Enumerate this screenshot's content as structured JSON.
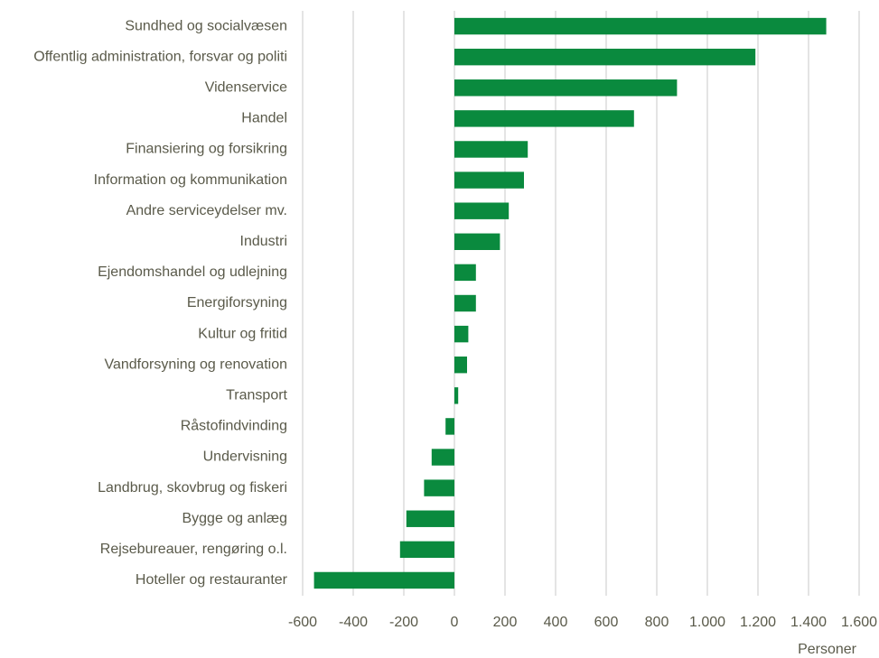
{
  "chart_data": {
    "type": "barh",
    "categories": [
      "Sundhed og socialvæsen",
      "Offentlig administration, forsvar og politi",
      "Videnservice",
      "Handel",
      "Finansiering og forsikring",
      "Information og kommunikation",
      "Andre serviceydelser mv.",
      "Industri",
      "Ejendomshandel og udlejning",
      "Energiforsyning",
      "Kultur og fritid",
      "Vandforsyning og renovation",
      "Transport",
      "Råstofindvinding",
      "Undervisning",
      "Landbrug, skovbrug og fiskeri",
      "Bygge og anlæg",
      "Rejsebureauer, rengøring o.l.",
      "Hoteller og restauranter"
    ],
    "values": [
      1470,
      1190,
      880,
      710,
      290,
      275,
      215,
      180,
      85,
      85,
      55,
      50,
      15,
      -35,
      -90,
      -120,
      -190,
      -215,
      -555
    ],
    "color": "#0a8a3e",
    "xlabel": "Personer",
    "xlim": [
      -600,
      1600
    ],
    "xticks": [
      -600,
      -400,
      -200,
      0,
      200,
      400,
      600,
      800,
      {
        "value": 1000,
        "label": "1.000"
      },
      {
        "value": 1200,
        "label": "1.200"
      },
      {
        "value": 1400,
        "label": "1.400"
      },
      {
        "value": 1600,
        "label": "1.600"
      }
    ],
    "grid": true
  }
}
